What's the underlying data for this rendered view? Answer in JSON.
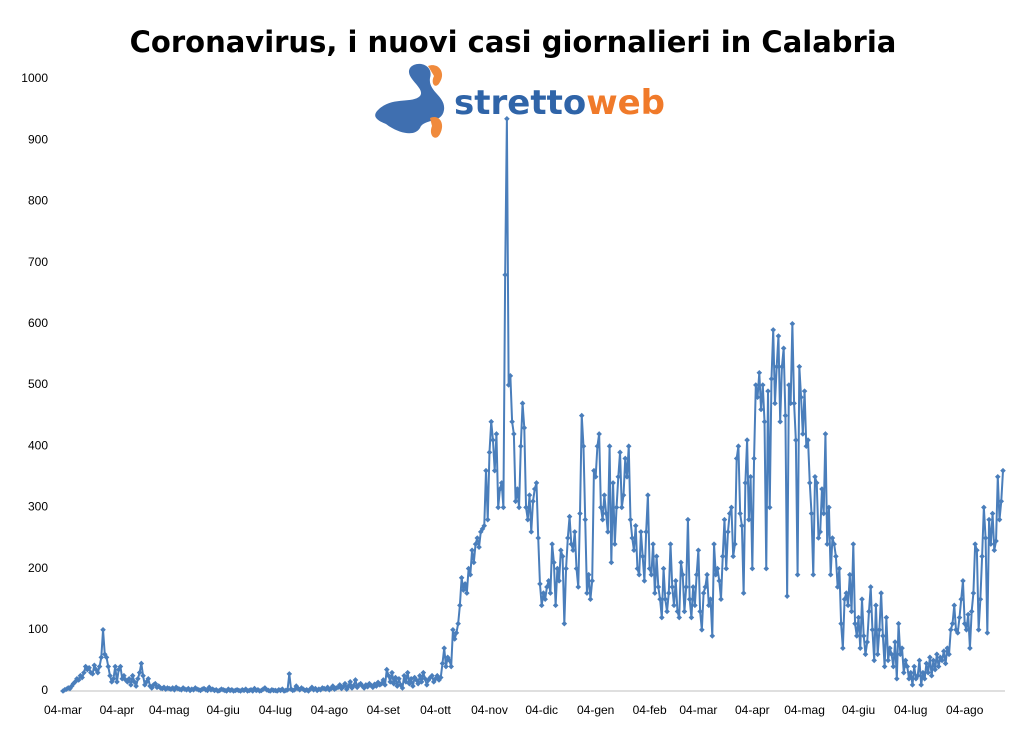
{
  "chart_data": {
    "type": "line",
    "title": "Coronavirus, i nuovi casi giornalieri in Calabria",
    "logo": [
      "stretto",
      "web"
    ],
    "ylim": [
      0,
      1000
    ],
    "yticks": [
      0,
      100,
      200,
      300,
      400,
      500,
      600,
      700,
      800,
      900,
      1000
    ],
    "categories": [
      "04-mar",
      null,
      null,
      null,
      null,
      null,
      null,
      null,
      null,
      null,
      null,
      null,
      null,
      null,
      null,
      null,
      null,
      null,
      null,
      null,
      null,
      null,
      null,
      null,
      null,
      null,
      null,
      null,
      null,
      null,
      null,
      "04-apr",
      null,
      null,
      null,
      null,
      null,
      null,
      null,
      null,
      null,
      null,
      null,
      null,
      null,
      null,
      null,
      null,
      null,
      null,
      null,
      null,
      null,
      null,
      null,
      null,
      null,
      null,
      null,
      null,
      null,
      "04-mag",
      null,
      null,
      null,
      null,
      null,
      null,
      null,
      null,
      null,
      null,
      null,
      null,
      null,
      null,
      null,
      null,
      null,
      null,
      null,
      null,
      null,
      null,
      null,
      null,
      null,
      null,
      null,
      null,
      null,
      null,
      "04-giu",
      null,
      null,
      null,
      null,
      null,
      null,
      null,
      null,
      null,
      null,
      null,
      null,
      null,
      null,
      null,
      null,
      null,
      null,
      null,
      null,
      null,
      null,
      null,
      null,
      null,
      null,
      null,
      null,
      null,
      "04-lug",
      null,
      null,
      null,
      null,
      null,
      null,
      null,
      null,
      null,
      null,
      null,
      null,
      null,
      null,
      null,
      null,
      null,
      null,
      null,
      null,
      null,
      null,
      null,
      null,
      null,
      null,
      null,
      null,
      null,
      null,
      "04-ago",
      null,
      null,
      null,
      null,
      null,
      null,
      null,
      null,
      null,
      null,
      null,
      null,
      null,
      null,
      null,
      null,
      null,
      null,
      null,
      null,
      null,
      null,
      null,
      null,
      null,
      null,
      null,
      null,
      null,
      null,
      "04-set",
      null,
      null,
      null,
      null,
      null,
      null,
      null,
      null,
      null,
      null,
      null,
      null,
      null,
      null,
      null,
      null,
      null,
      null,
      null,
      null,
      null,
      null,
      null,
      null,
      null,
      null,
      null,
      null,
      null,
      "04-ott",
      null,
      null,
      null,
      null,
      null,
      null,
      null,
      null,
      null,
      null,
      null,
      null,
      null,
      null,
      null,
      null,
      null,
      null,
      null,
      null,
      null,
      null,
      null,
      null,
      null,
      null,
      null,
      null,
      null,
      null,
      "04-nov",
      null,
      null,
      null,
      null,
      null,
      null,
      null,
      null,
      null,
      null,
      null,
      null,
      null,
      null,
      null,
      null,
      null,
      null,
      null,
      null,
      null,
      null,
      null,
      null,
      null,
      null,
      null,
      null,
      null,
      "04-dic",
      null,
      null,
      null,
      null,
      null,
      null,
      null,
      null,
      null,
      null,
      null,
      null,
      null,
      null,
      null,
      null,
      null,
      null,
      null,
      null,
      null,
      null,
      null,
      null,
      null,
      null,
      null,
      null,
      null,
      null,
      "04-gen",
      null,
      null,
      null,
      null,
      null,
      null,
      null,
      null,
      null,
      null,
      null,
      null,
      null,
      null,
      null,
      null,
      null,
      null,
      null,
      null,
      null,
      null,
      null,
      null,
      null,
      null,
      null,
      null,
      null,
      null,
      "04-feb",
      null,
      null,
      null,
      null,
      null,
      null,
      null,
      null,
      null,
      null,
      null,
      null,
      null,
      null,
      null,
      null,
      null,
      null,
      null,
      null,
      null,
      null,
      null,
      null,
      null,
      null,
      null,
      "04-mar",
      null,
      null,
      null,
      null,
      null,
      null,
      null,
      null,
      null,
      null,
      null,
      null,
      null,
      null,
      null,
      null,
      null,
      null,
      null,
      null,
      null,
      null,
      null,
      null,
      null,
      null,
      null,
      null,
      null,
      null,
      "04-apr",
      null,
      null,
      null,
      null,
      null,
      null,
      null,
      null,
      null,
      null,
      null,
      null,
      null,
      null,
      null,
      null,
      null,
      null,
      null,
      null,
      null,
      null,
      null,
      null,
      null,
      null,
      null,
      null,
      null,
      "04-mag",
      null,
      null,
      null,
      null,
      null,
      null,
      null,
      null,
      null,
      null,
      null,
      null,
      null,
      null,
      null,
      null,
      null,
      null,
      null,
      null,
      null,
      null,
      null,
      null,
      null,
      null,
      null,
      null,
      null,
      null,
      "04-giu",
      null,
      null,
      null,
      null,
      null,
      null,
      null,
      null,
      null,
      null,
      null,
      null,
      null,
      null,
      null,
      null,
      null,
      null,
      null,
      null,
      null,
      null,
      null,
      null,
      null,
      null,
      null,
      null,
      null,
      "04-lug",
      null,
      null,
      null,
      null,
      null,
      null,
      null,
      null,
      null,
      null,
      null,
      null,
      null,
      null,
      null,
      null,
      null,
      null,
      null,
      null,
      null,
      null,
      null,
      null,
      null,
      null,
      null,
      null,
      null,
      null,
      "04-ago",
      null,
      null,
      null,
      null,
      null,
      null,
      null,
      null,
      null,
      null,
      null,
      null,
      null,
      null,
      null,
      null,
      null,
      null,
      null,
      null,
      null,
      null
    ],
    "series": [
      {
        "color": "#4a7ebb",
        "values": [
          0,
          2,
          3,
          5,
          4,
          8,
          12,
          15,
          20,
          18,
          25,
          22,
          30,
          40,
          35,
          38,
          30,
          28,
          42,
          35,
          30,
          40,
          55,
          100,
          60,
          55,
          40,
          25,
          15,
          20,
          40,
          15,
          35,
          40,
          20,
          25,
          18,
          15,
          20,
          10,
          25,
          15,
          8,
          20,
          30,
          45,
          25,
          10,
          15,
          20,
          8,
          5,
          10,
          12,
          6,
          8,
          5,
          4,
          6,
          3,
          5,
          4,
          3,
          5,
          2,
          6,
          4,
          3,
          2,
          5,
          3,
          2,
          4,
          1,
          3,
          2,
          5,
          3,
          2,
          1,
          3,
          4,
          2,
          1,
          6,
          2,
          3,
          1,
          2,
          0,
          1,
          3,
          2,
          1,
          0,
          3,
          1,
          2,
          0,
          1,
          2,
          1,
          0,
          2,
          1,
          3,
          0,
          1,
          2,
          0,
          4,
          1,
          2,
          0,
          1,
          3,
          5,
          2,
          1,
          0,
          2,
          1,
          1,
          0,
          2,
          1,
          3,
          0,
          1,
          2,
          28,
          3,
          1,
          2,
          8,
          4,
          2,
          5,
          3,
          1,
          2,
          0,
          3,
          6,
          2,
          4,
          1,
          3,
          2,
          5,
          4,
          3,
          6,
          2,
          4,
          8,
          3,
          5,
          6,
          10,
          4,
          7,
          12,
          3,
          8,
          15,
          5,
          9,
          18,
          6,
          10,
          12,
          8,
          5,
          10,
          7,
          12,
          9,
          6,
          11,
          8,
          14,
          10,
          12,
          18,
          10,
          35,
          25,
          15,
          30,
          12,
          22,
          8,
          20,
          10,
          5,
          25,
          15,
          30,
          12,
          20,
          8,
          22,
          18,
          12,
          25,
          15,
          30,
          20,
          10,
          18,
          22,
          25,
          15,
          20,
          25,
          18,
          22,
          45,
          70,
          40,
          55,
          50,
          40,
          100,
          85,
          95,
          110,
          140,
          185,
          165,
          175,
          160,
          200,
          190,
          230,
          210,
          240,
          250,
          235,
          260,
          265,
          270,
          360,
          280,
          390,
          440,
          410,
          360,
          420,
          300,
          330,
          340,
          300,
          680,
          935,
          500,
          515,
          440,
          420,
          310,
          330,
          300,
          400,
          470,
          430,
          300,
          280,
          320,
          260,
          310,
          330,
          340,
          250,
          175,
          140,
          160,
          150,
          170,
          180,
          160,
          240,
          210,
          140,
          200,
          180,
          230,
          220,
          110,
          200,
          250,
          285,
          240,
          230,
          260,
          200,
          170,
          290,
          450,
          400,
          280,
          160,
          190,
          150,
          180,
          360,
          350,
          400,
          420,
          300,
          280,
          320,
          290,
          260,
          400,
          210,
          340,
          240,
          300,
          350,
          390,
          300,
          320,
          380,
          350,
          400,
          280,
          250,
          230,
          270,
          200,
          190,
          260,
          220,
          180,
          260,
          320,
          200,
          190,
          240,
          160,
          220,
          170,
          150,
          120,
          200,
          150,
          130,
          160,
          240,
          170,
          140,
          180,
          130,
          120,
          210,
          190,
          130,
          170,
          280,
          150,
          120,
          170,
          140,
          190,
          230,
          130,
          100,
          160,
          170,
          190,
          140,
          150,
          90,
          240,
          190,
          200,
          180,
          150,
          220,
          280,
          200,
          260,
          290,
          300,
          220,
          240,
          380,
          400,
          290,
          270,
          160,
          340,
          410,
          280,
          350,
          200,
          380,
          500,
          480,
          520,
          460,
          500,
          440,
          200,
          490,
          300,
          510,
          590,
          470,
          530,
          580,
          440,
          530,
          560,
          450,
          155,
          500,
          470,
          600,
          470,
          410,
          190,
          530,
          480,
          420,
          490,
          400,
          410,
          340,
          290,
          190,
          350,
          340,
          250,
          260,
          330,
          290,
          420,
          240,
          300,
          190,
          250,
          240,
          220,
          170,
          200,
          110,
          70,
          150,
          160,
          140,
          190,
          130,
          240,
          110,
          90,
          120,
          70,
          150,
          90,
          60,
          80,
          130,
          170,
          100,
          50,
          140,
          60,
          100,
          160,
          90,
          40,
          120,
          50,
          70,
          60,
          40,
          80,
          20,
          110,
          60,
          70,
          30,
          50,
          40,
          20,
          30,
          10,
          40,
          20,
          25,
          50,
          10,
          30,
          20,
          45,
          30,
          55,
          25,
          50,
          35,
          60,
          40,
          55,
          50,
          65,
          45,
          70,
          60,
          100,
          110,
          140,
          100,
          95,
          120,
          150,
          180,
          110,
          100,
          125,
          70,
          130,
          160,
          240,
          230,
          100,
          150,
          220,
          300,
          250,
          95,
          280,
          240,
          290,
          230,
          245,
          350,
          280,
          310,
          360
        ]
      }
    ]
  }
}
